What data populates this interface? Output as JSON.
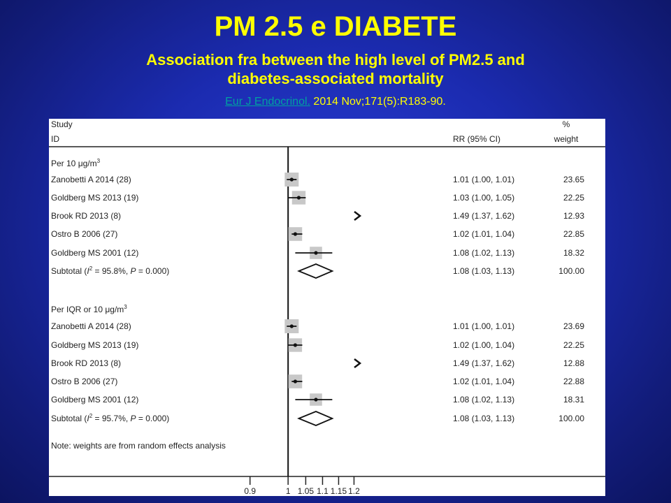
{
  "slide": {
    "title": "PM 2.5 e DIABETE",
    "subtitle_line1": "Association fra between the high level of PM2.5 and",
    "subtitle_line2": "diabetes-associated mortality",
    "citation_link": "Eur J Endocrinol.",
    "citation_rest": " 2014 Nov;171(5):R183-90."
  },
  "colors": {
    "title": "#ffff00",
    "link": "#00a0a0",
    "box": "#c8c8c8"
  },
  "chart_data": {
    "type": "forest",
    "header": {
      "study_line1": "Study",
      "study_line2": "ID",
      "rr_header": "RR (95% CI)",
      "weight_line1": "%",
      "weight_line2": "weight"
    },
    "x_scale": "log",
    "xlim": [
      0.88,
      1.22
    ],
    "xticks": [
      0.9,
      1,
      1.05,
      1.1,
      1.15,
      1.2
    ],
    "xtick_labels": [
      "0.9",
      "1",
      "1.05",
      "1.1",
      "1.15",
      "1.2"
    ],
    "null_line": 1,
    "groups": [
      {
        "label": "Per 10 μg/m",
        "label_sup": "3",
        "studies": [
          {
            "name": "Zanobetti A 2014 (28)",
            "rr": 1.01,
            "lo": 1.0,
            "hi": 1.01,
            "rr_text": "1.01 (1.00, 1.01)",
            "weight": "23.65",
            "weight_value": 23.65,
            "offscale": false
          },
          {
            "name": "Goldberg MS 2013 (19)",
            "rr": 1.03,
            "lo": 1.0,
            "hi": 1.05,
            "rr_text": "1.03 (1.00, 1.05)",
            "weight": "22.25",
            "weight_value": 22.25,
            "offscale": false
          },
          {
            "name": "Brook RD 2013 (8)",
            "rr": 1.49,
            "lo": 1.37,
            "hi": 1.62,
            "rr_text": "1.49 (1.37, 1.62)",
            "weight": "12.93",
            "weight_value": 12.93,
            "offscale": true
          },
          {
            "name": "Ostro B 2006 (27)",
            "rr": 1.02,
            "lo": 1.01,
            "hi": 1.04,
            "rr_text": "1.02 (1.01, 1.04)",
            "weight": "22.85",
            "weight_value": 22.85,
            "offscale": false
          },
          {
            "name": "Goldberg MS 2001 (12)",
            "rr": 1.08,
            "lo": 1.02,
            "hi": 1.13,
            "rr_text": "1.08 (1.02, 1.13)",
            "weight": "18.32",
            "weight_value": 18.32,
            "offscale": false
          }
        ],
        "subtotal": {
          "label_pre": "Subtotal (",
          "i2_symbol": "I",
          "i2_sup": "2",
          "label_post": " = 95.8%, ",
          "p_symbol": "P",
          "p_text": " = 0.000)",
          "rr": 1.08,
          "lo": 1.03,
          "hi": 1.13,
          "rr_text": "1.08 (1.03, 1.13)",
          "weight": "100.00"
        }
      },
      {
        "label": "Per IQR or 10 μg/m",
        "label_sup": "3",
        "studies": [
          {
            "name": "Zanobetti A 2014 (28)",
            "rr": 1.01,
            "lo": 1.0,
            "hi": 1.01,
            "rr_text": "1.01 (1.00, 1.01)",
            "weight": "23.69",
            "weight_value": 23.69,
            "offscale": false
          },
          {
            "name": "Goldberg MS 2013 (19)",
            "rr": 1.02,
            "lo": 1.0,
            "hi": 1.04,
            "rr_text": "1.02 (1.00, 1.04)",
            "weight": "22.25",
            "weight_value": 22.25,
            "offscale": false
          },
          {
            "name": "Brook RD 2013 (8)",
            "rr": 1.49,
            "lo": 1.37,
            "hi": 1.62,
            "rr_text": "1.49 (1.37, 1.62)",
            "weight": "12.88",
            "weight_value": 12.88,
            "offscale": true
          },
          {
            "name": "Ostro B 2006 (27)",
            "rr": 1.02,
            "lo": 1.01,
            "hi": 1.04,
            "rr_text": "1.02 (1.01, 1.04)",
            "weight": "22.88",
            "weight_value": 22.88,
            "offscale": false
          },
          {
            "name": "Goldberg MS 2001 (12)",
            "rr": 1.08,
            "lo": 1.02,
            "hi": 1.13,
            "rr_text": "1.08 (1.02, 1.13)",
            "weight": "18.31",
            "weight_value": 18.31,
            "offscale": false
          }
        ],
        "subtotal": {
          "label_pre": "Subtotal (",
          "i2_symbol": "I",
          "i2_sup": "2",
          "label_post": " = 95.7%, ",
          "p_symbol": "P",
          "p_text": " = 0.000)",
          "rr": 1.08,
          "lo": 1.03,
          "hi": 1.13,
          "rr_text": "1.08 (1.03, 1.13)",
          "weight": "100.00"
        }
      }
    ],
    "note": "Note: weights are from random effects analysis"
  }
}
